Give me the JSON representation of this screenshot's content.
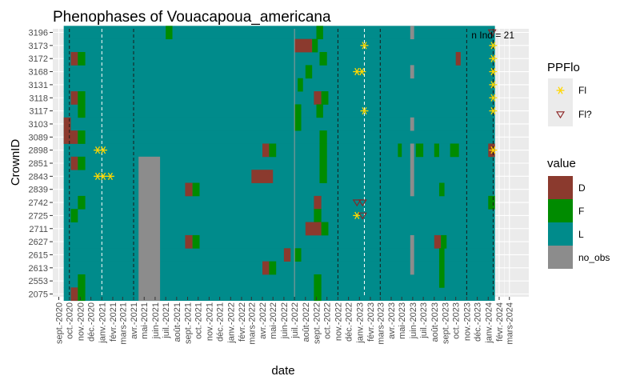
{
  "chart_data": {
    "type": "heatmap",
    "title": "Phenophases of Vouacapoua_americana",
    "xlabel": "date",
    "ylabel": "CrownID",
    "annotation": "n Ind = 21",
    "x_range": [
      "2020-08-15",
      "2024-04-25"
    ],
    "x_tick_labels": [
      "sept.-2020",
      "oct.-2020",
      "nov.-2020",
      "déc.-2020",
      "janv.-2021",
      "févr.-2021",
      "mars-2021",
      "avr.-2021",
      "mai-2021",
      "juin-2021",
      "juil.-2021",
      "août-2021",
      "sept.-2021",
      "oct.-2021",
      "nov.-2021",
      "déc.-2021",
      "janv.-2022",
      "févr.-2022",
      "mars-2022",
      "avr.-2022",
      "mai-2022",
      "juin-2022",
      "juil.-2022",
      "août-2022",
      "sept.-2022",
      "oct.-2022",
      "nov.-2022",
      "déc.-2022",
      "janv.-2023",
      "févr.-2023",
      "mars-2023",
      "avr.-2023",
      "mai-2023",
      "juin-2023",
      "juil.-2023",
      "août-2023",
      "sept.-2023",
      "oct.-2023",
      "nov.-2023",
      "déc.-2023",
      "janv.-2024",
      "févr.-2024",
      "mars-2024"
    ],
    "crown_ids": [
      "3196",
      "3173",
      "3172",
      "3168",
      "3131",
      "3118",
      "3117",
      "3103",
      "3089",
      "2898",
      "2851",
      "2843",
      "2839",
      "2742",
      "2725",
      "2711",
      "2627",
      "2615",
      "2613",
      "2553",
      "2075"
    ],
    "observation_span": [
      "2020-09-15",
      "2024-01-20"
    ],
    "colors": {
      "D": "#8B3A2E",
      "F": "#008B00",
      "L": "#008B8B",
      "no_obs": "#8C8C8C",
      "grid_bg": "#EBEBEB",
      "fl_marker": "#FFD700",
      "flq_marker": "#8B2323",
      "black_line": "#1a1a1a",
      "white_line": "#ffffff"
    },
    "legend_ppflo": {
      "title": "PPFlo",
      "items": [
        {
          "key": "Fl",
          "label": "Fl"
        },
        {
          "key": "Fl?",
          "label": "Fl?"
        }
      ]
    },
    "legend_value": {
      "title": "value",
      "items": [
        {
          "key": "D",
          "label": "D"
        },
        {
          "key": "F",
          "label": "F"
        },
        {
          "key": "L",
          "label": "L"
        },
        {
          "key": "no_obs",
          "label": "no_obs"
        }
      ]
    },
    "black_dashed_lines": [
      "2020-10-01",
      "2021-04-01",
      "2022-11-01",
      "2023-03-01",
      "2023-11-01",
      "2024-01-15"
    ],
    "white_dashed_lines": [
      "2021-01-01",
      "2023-01-15"
    ],
    "gray_solid_lines": [
      "2022-07-01"
    ],
    "cells": [
      {
        "crown": "3196",
        "start": "2021-07-01",
        "end": "2021-07-20",
        "value": "F"
      },
      {
        "crown": "3196",
        "start": "2022-09-01",
        "end": "2022-09-20",
        "value": "F"
      },
      {
        "crown": "3196",
        "start": "2023-05-25",
        "end": "2023-06-05",
        "value": "no_obs"
      },
      {
        "crown": "3173",
        "start": "2022-07-01",
        "end": "2022-08-20",
        "value": "D"
      },
      {
        "crown": "3173",
        "start": "2022-08-20",
        "end": "2022-09-05",
        "value": "F"
      },
      {
        "crown": "3172",
        "start": "2020-10-05",
        "end": "2020-10-25",
        "value": "D"
      },
      {
        "crown": "3172",
        "start": "2020-10-25",
        "end": "2020-11-15",
        "value": "F"
      },
      {
        "crown": "3172",
        "start": "2022-09-10",
        "end": "2022-10-01",
        "value": "F"
      },
      {
        "crown": "3172",
        "start": "2023-10-01",
        "end": "2023-10-15",
        "value": "D"
      },
      {
        "crown": "3168",
        "start": "2022-08-01",
        "end": "2022-08-20",
        "value": "F"
      },
      {
        "crown": "3168",
        "start": "2023-05-25",
        "end": "2023-06-05",
        "value": "no_obs"
      },
      {
        "crown": "3131",
        "start": "2022-07-10",
        "end": "2022-07-25",
        "value": "F"
      },
      {
        "crown": "3118",
        "start": "2020-10-05",
        "end": "2020-10-25",
        "value": "D"
      },
      {
        "crown": "3118",
        "start": "2020-10-25",
        "end": "2020-11-15",
        "value": "F"
      },
      {
        "crown": "3118",
        "start": "2022-08-25",
        "end": "2022-09-15",
        "value": "D"
      },
      {
        "crown": "3118",
        "start": "2022-09-15",
        "end": "2022-10-05",
        "value": "F"
      },
      {
        "crown": "3117",
        "start": "2020-10-25",
        "end": "2020-11-15",
        "value": "F"
      },
      {
        "crown": "3117",
        "start": "2022-07-01",
        "end": "2022-07-20",
        "value": "F"
      },
      {
        "crown": "3117",
        "start": "2022-09-01",
        "end": "2022-09-20",
        "value": "F"
      },
      {
        "crown": "3103",
        "start": "2020-09-15",
        "end": "2020-10-05",
        "value": "D"
      },
      {
        "crown": "3103",
        "start": "2022-07-01",
        "end": "2022-07-20",
        "value": "F"
      },
      {
        "crown": "3103",
        "start": "2023-05-25",
        "end": "2023-06-05",
        "value": "no_obs"
      },
      {
        "crown": "3089",
        "start": "2020-09-15",
        "end": "2020-10-25",
        "value": "D"
      },
      {
        "crown": "3089",
        "start": "2020-10-25",
        "end": "2020-11-15",
        "value": "F"
      },
      {
        "crown": "3089",
        "start": "2022-09-10",
        "end": "2022-10-01",
        "value": "F"
      },
      {
        "crown": "2898",
        "start": "2022-04-01",
        "end": "2022-04-20",
        "value": "D"
      },
      {
        "crown": "2898",
        "start": "2022-04-20",
        "end": "2022-05-10",
        "value": "F"
      },
      {
        "crown": "2898",
        "start": "2022-09-10",
        "end": "2022-10-01",
        "value": "F"
      },
      {
        "crown": "2898",
        "start": "2023-04-20",
        "end": "2023-05-01",
        "value": "F"
      },
      {
        "crown": "2898",
        "start": "2023-05-25",
        "end": "2023-06-05",
        "value": "no_obs"
      },
      {
        "crown": "2898",
        "start": "2023-06-10",
        "end": "2023-07-01",
        "value": "F"
      },
      {
        "crown": "2898",
        "start": "2023-08-01",
        "end": "2023-08-15",
        "value": "F"
      },
      {
        "crown": "2898",
        "start": "2023-09-15",
        "end": "2023-10-10",
        "value": "F"
      },
      {
        "crown": "2898",
        "start": "2024-01-01",
        "end": "2024-01-20",
        "value": "D"
      },
      {
        "crown": "2851",
        "start": "2020-10-05",
        "end": "2020-10-25",
        "value": "D"
      },
      {
        "crown": "2851",
        "start": "2020-10-25",
        "end": "2020-11-15",
        "value": "F"
      },
      {
        "crown": "2851",
        "start": "2021-04-15",
        "end": "2021-06-15",
        "value": "no_obs"
      },
      {
        "crown": "2851",
        "start": "2022-09-10",
        "end": "2022-10-01",
        "value": "F"
      },
      {
        "crown": "2851",
        "start": "2023-05-25",
        "end": "2023-06-05",
        "value": "no_obs"
      },
      {
        "crown": "2843",
        "start": "2021-04-15",
        "end": "2021-06-15",
        "value": "no_obs"
      },
      {
        "crown": "2843",
        "start": "2022-03-01",
        "end": "2022-05-01",
        "value": "D"
      },
      {
        "crown": "2843",
        "start": "2022-09-10",
        "end": "2022-10-01",
        "value": "F"
      },
      {
        "crown": "2843",
        "start": "2023-05-25",
        "end": "2023-06-05",
        "value": "no_obs"
      },
      {
        "crown": "2839",
        "start": "2021-04-15",
        "end": "2021-06-15",
        "value": "no_obs"
      },
      {
        "crown": "2839",
        "start": "2021-08-25",
        "end": "2021-09-15",
        "value": "D"
      },
      {
        "crown": "2839",
        "start": "2021-09-15",
        "end": "2021-10-05",
        "value": "F"
      },
      {
        "crown": "2839",
        "start": "2023-05-25",
        "end": "2023-06-05",
        "value": "no_obs"
      },
      {
        "crown": "2839",
        "start": "2023-08-15",
        "end": "2023-08-30",
        "value": "F"
      },
      {
        "crown": "2742",
        "start": "2020-10-25",
        "end": "2020-11-15",
        "value": "F"
      },
      {
        "crown": "2742",
        "start": "2021-04-15",
        "end": "2021-06-15",
        "value": "no_obs"
      },
      {
        "crown": "2742",
        "start": "2022-08-25",
        "end": "2022-09-15",
        "value": "D"
      },
      {
        "crown": "2742",
        "start": "2024-01-01",
        "end": "2024-01-20",
        "value": "F"
      },
      {
        "crown": "2725",
        "start": "2020-10-05",
        "end": "2020-10-25",
        "value": "F"
      },
      {
        "crown": "2725",
        "start": "2021-04-15",
        "end": "2021-06-15",
        "value": "no_obs"
      },
      {
        "crown": "2725",
        "start": "2022-08-25",
        "end": "2022-09-15",
        "value": "F"
      },
      {
        "crown": "2711",
        "start": "2021-04-15",
        "end": "2021-06-15",
        "value": "no_obs"
      },
      {
        "crown": "2711",
        "start": "2022-08-01",
        "end": "2022-09-15",
        "value": "D"
      },
      {
        "crown": "2711",
        "start": "2022-09-15",
        "end": "2022-10-05",
        "value": "F"
      },
      {
        "crown": "2627",
        "start": "2021-04-15",
        "end": "2021-06-15",
        "value": "no_obs"
      },
      {
        "crown": "2627",
        "start": "2021-08-25",
        "end": "2021-09-15",
        "value": "D"
      },
      {
        "crown": "2627",
        "start": "2021-09-15",
        "end": "2021-10-05",
        "value": "F"
      },
      {
        "crown": "2627",
        "start": "2023-05-25",
        "end": "2023-06-05",
        "value": "no_obs"
      },
      {
        "crown": "2627",
        "start": "2023-08-01",
        "end": "2023-08-20",
        "value": "D"
      },
      {
        "crown": "2627",
        "start": "2023-08-20",
        "end": "2023-09-05",
        "value": "F"
      },
      {
        "crown": "2615",
        "start": "2021-04-15",
        "end": "2021-06-15",
        "value": "no_obs"
      },
      {
        "crown": "2615",
        "start": "2022-06-01",
        "end": "2022-06-20",
        "value": "D"
      },
      {
        "crown": "2615",
        "start": "2022-07-01",
        "end": "2022-07-20",
        "value": "F"
      },
      {
        "crown": "2615",
        "start": "2023-05-25",
        "end": "2023-06-05",
        "value": "no_obs"
      },
      {
        "crown": "2615",
        "start": "2023-08-15",
        "end": "2023-08-30",
        "value": "F"
      },
      {
        "crown": "2613",
        "start": "2021-04-15",
        "end": "2021-06-15",
        "value": "no_obs"
      },
      {
        "crown": "2613",
        "start": "2022-04-01",
        "end": "2022-04-20",
        "value": "D"
      },
      {
        "crown": "2613",
        "start": "2022-04-20",
        "end": "2022-05-10",
        "value": "F"
      },
      {
        "crown": "2613",
        "start": "2023-05-25",
        "end": "2023-06-05",
        "value": "no_obs"
      },
      {
        "crown": "2613",
        "start": "2023-08-15",
        "end": "2023-08-30",
        "value": "F"
      },
      {
        "crown": "2553",
        "start": "2020-10-25",
        "end": "2020-11-15",
        "value": "F"
      },
      {
        "crown": "2553",
        "start": "2021-04-15",
        "end": "2021-06-15",
        "value": "no_obs"
      },
      {
        "crown": "2553",
        "start": "2022-08-25",
        "end": "2022-09-15",
        "value": "F"
      },
      {
        "crown": "2553",
        "start": "2023-08-15",
        "end": "2023-08-30",
        "value": "F"
      },
      {
        "crown": "2075",
        "start": "2020-10-05",
        "end": "2020-10-25",
        "value": "D"
      },
      {
        "crown": "2075",
        "start": "2020-10-25",
        "end": "2020-11-15",
        "value": "F"
      },
      {
        "crown": "2075",
        "start": "2021-04-15",
        "end": "2021-06-15",
        "value": "no_obs"
      },
      {
        "crown": "2075",
        "start": "2022-08-25",
        "end": "2022-09-15",
        "value": "F"
      }
    ],
    "flowering_markers": [
      {
        "crown": "3196",
        "date": "2024-01-12",
        "type": "Fl?"
      },
      {
        "crown": "3173",
        "date": "2023-01-15",
        "type": "Fl"
      },
      {
        "crown": "3173",
        "date": "2024-01-15",
        "type": "Fl"
      },
      {
        "crown": "3172",
        "date": "2024-01-15",
        "type": "Fl"
      },
      {
        "crown": "3168",
        "date": "2022-12-25",
        "type": "Fl"
      },
      {
        "crown": "3168",
        "date": "2023-01-08",
        "type": "Fl"
      },
      {
        "crown": "3168",
        "date": "2024-01-15",
        "type": "Fl"
      },
      {
        "crown": "3131",
        "date": "2024-01-15",
        "type": "Fl"
      },
      {
        "crown": "3118",
        "date": "2024-01-15",
        "type": "Fl"
      },
      {
        "crown": "3117",
        "date": "2023-01-15",
        "type": "Fl"
      },
      {
        "crown": "3117",
        "date": "2024-01-15",
        "type": "Fl"
      },
      {
        "crown": "2898",
        "date": "2020-12-20",
        "type": "Fl"
      },
      {
        "crown": "2898",
        "date": "2021-01-05",
        "type": "Fl"
      },
      {
        "crown": "2898",
        "date": "2024-01-15",
        "type": "Fl"
      },
      {
        "crown": "2843",
        "date": "2020-12-20",
        "type": "Fl"
      },
      {
        "crown": "2843",
        "date": "2021-01-05",
        "type": "Fl"
      },
      {
        "crown": "2843",
        "date": "2021-01-25",
        "type": "Fl"
      },
      {
        "crown": "2742",
        "date": "2022-12-25",
        "type": "Fl?"
      },
      {
        "crown": "2742",
        "date": "2023-01-10",
        "type": "Fl?"
      },
      {
        "crown": "2725",
        "date": "2022-12-25",
        "type": "Fl"
      },
      {
        "crown": "2725",
        "date": "2023-01-10",
        "type": "Fl?"
      }
    ]
  }
}
